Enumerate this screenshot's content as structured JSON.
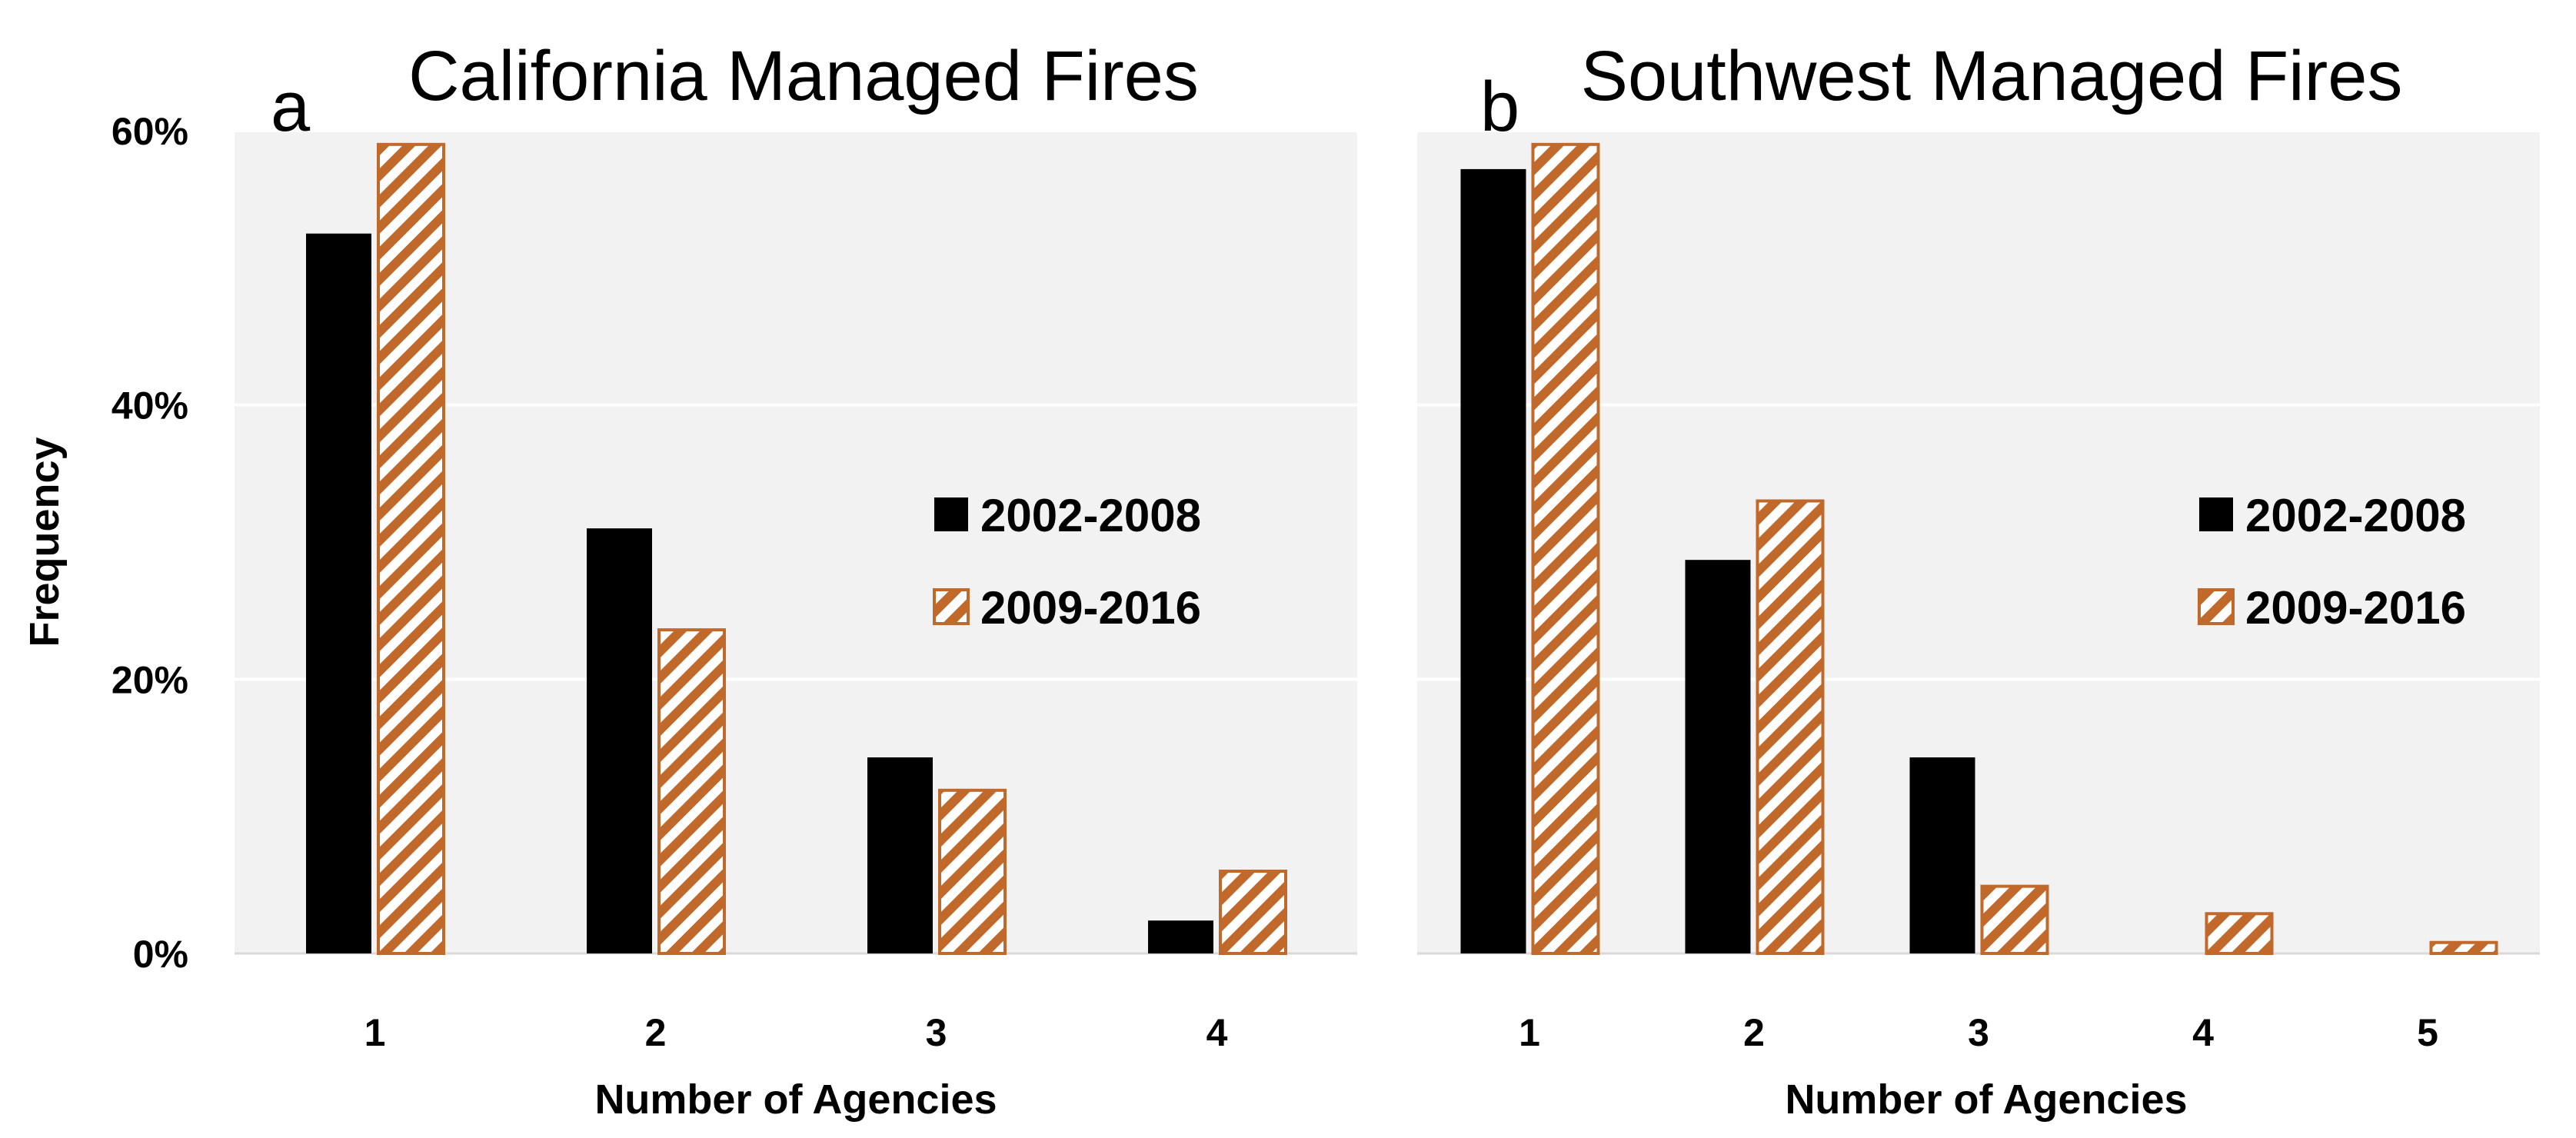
{
  "colors": {
    "plot_bg": "#f2f2f2",
    "gridline": "#ffffff",
    "solid_bar": "#000000",
    "hatch_stroke": "#c0692a",
    "hatch_bg": "#ffffff"
  },
  "chart_data": [
    {
      "type": "bar",
      "panel": "a",
      "title": "California Managed Fires",
      "xlabel": "Number of Agencies",
      "ylabel": "Frequency",
      "ylim": [
        0,
        60
      ],
      "yticks": [
        0,
        20,
        40,
        60
      ],
      "ytick_labels": [
        "0%",
        "20%",
        "40%",
        "60%"
      ],
      "grid": true,
      "legend_position": "center-right",
      "categories": [
        "1",
        "2",
        "3",
        "4"
      ],
      "series": [
        {
          "name": "2002-2008",
          "style": "solid",
          "values": [
            52.5,
            31,
            14.3,
            2.4
          ]
        },
        {
          "name": "2009-2016",
          "style": "hatched",
          "values": [
            59,
            23.6,
            11.9,
            6
          ]
        }
      ]
    },
    {
      "type": "bar",
      "panel": "b",
      "title": "Southwest Managed Fires",
      "xlabel": "Number of Agencies",
      "ylabel": "",
      "ylim": [
        0,
        60
      ],
      "yticks": [
        0,
        20,
        40,
        60
      ],
      "ytick_labels": [],
      "grid": true,
      "legend_position": "center-right",
      "categories": [
        "1",
        "2",
        "3",
        "4",
        "5"
      ],
      "series": [
        {
          "name": "2002-2008",
          "style": "solid",
          "values": [
            57.2,
            28.7,
            14.3,
            0,
            0
          ]
        },
        {
          "name": "2009-2016",
          "style": "hatched",
          "values": [
            59,
            33,
            4.9,
            2.9,
            0.8
          ]
        }
      ]
    }
  ]
}
